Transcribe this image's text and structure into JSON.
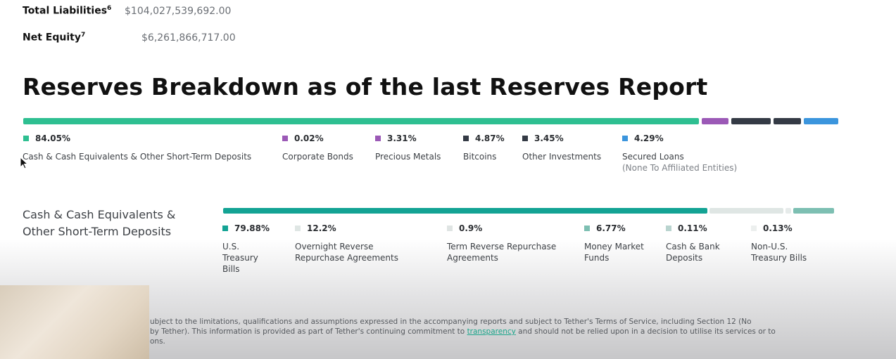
{
  "summary": {
    "total_liabilities": {
      "label": "Total Liabilities",
      "sup": "6",
      "value": "$104,027,539,692.00"
    },
    "net_equity": {
      "label": "Net Equity",
      "sup": "7",
      "value": "$6,261,866,717.00"
    }
  },
  "heading": "Reserves Breakdown as of the last Reserves Report",
  "reserves": {
    "segments": [
      {
        "share": 0.8405,
        "color": "#2ebf91"
      },
      {
        "share": 0.0331,
        "color": "#9b59b6"
      },
      {
        "share": 0.0487,
        "color": "#343a45"
      },
      {
        "share": 0.0345,
        "color": "#343a45"
      },
      {
        "share": 0.0429,
        "color": "#3b95dd"
      }
    ],
    "items": [
      {
        "pct": "84.05%",
        "label": "Cash & Cash Equivalents & Other Short-Term Deposits",
        "color": "#2ebf91"
      },
      {
        "pct": "0.02%",
        "label": "Corporate Bonds",
        "color": "#9b59b6"
      },
      {
        "pct": "3.31%",
        "label": "Precious Metals",
        "color": "#9b59b6"
      },
      {
        "pct": "4.87%",
        "label": "Bitcoins",
        "color": "#343a45"
      },
      {
        "pct": "3.45%",
        "label": "Other Investments",
        "color": "#343a45"
      },
      {
        "pct": "4.29%",
        "label": "Secured Loans",
        "sublabel": "(None To Affiliated Entities)",
        "color": "#3b95dd"
      }
    ]
  },
  "cash": {
    "title_line1": "Cash & Cash Equivalents &",
    "title_line2": "Other Short-Term Deposits",
    "segments": [
      {
        "share": 0.7988,
        "color": "#13a394"
      },
      {
        "share": 0.122,
        "color": "#dfe6e4"
      },
      {
        "share": 0.009,
        "color": "#e6ebea"
      },
      {
        "share": 0.0677,
        "color": "#7dbfb2"
      }
    ],
    "items": [
      {
        "pct": "79.88%",
        "label_lines": [
          "U.S.",
          "Treasury",
          "Bills"
        ],
        "color": "#13a394"
      },
      {
        "pct": "12.2%",
        "label_lines": [
          "Overnight Reverse",
          "Repurchase Agreements"
        ],
        "color": "#dfe6e4"
      },
      {
        "pct": "0.9%",
        "label_lines": [
          "Term Reverse Repurchase",
          "Agreements"
        ],
        "color": "#dfe4e3"
      },
      {
        "pct": "6.77%",
        "label_lines": [
          "Money Market",
          "Funds"
        ],
        "color": "#7dbfb2"
      },
      {
        "pct": "0.11%",
        "label_lines": [
          "Cash & Bank",
          "Deposits"
        ],
        "color": "#b9d4cf"
      },
      {
        "pct": "0.13%",
        "label_lines": [
          "Non-U.S.",
          "Treasury Bills"
        ],
        "color": "#ecefee"
      }
    ]
  },
  "footer": {
    "line1": "ubject to the limitations, qualifications and assumptions expressed in the accompanying reports and subject to Tether's Terms of Service, including Section 12 (No",
    "line2_pre": "by Tether). This information is provided as part of Tether's continuing commitment to ",
    "line2_link": "transparency",
    "line2_post": " and should not be relied upon in a decision to utilise its services or to",
    "line3": "ons."
  }
}
